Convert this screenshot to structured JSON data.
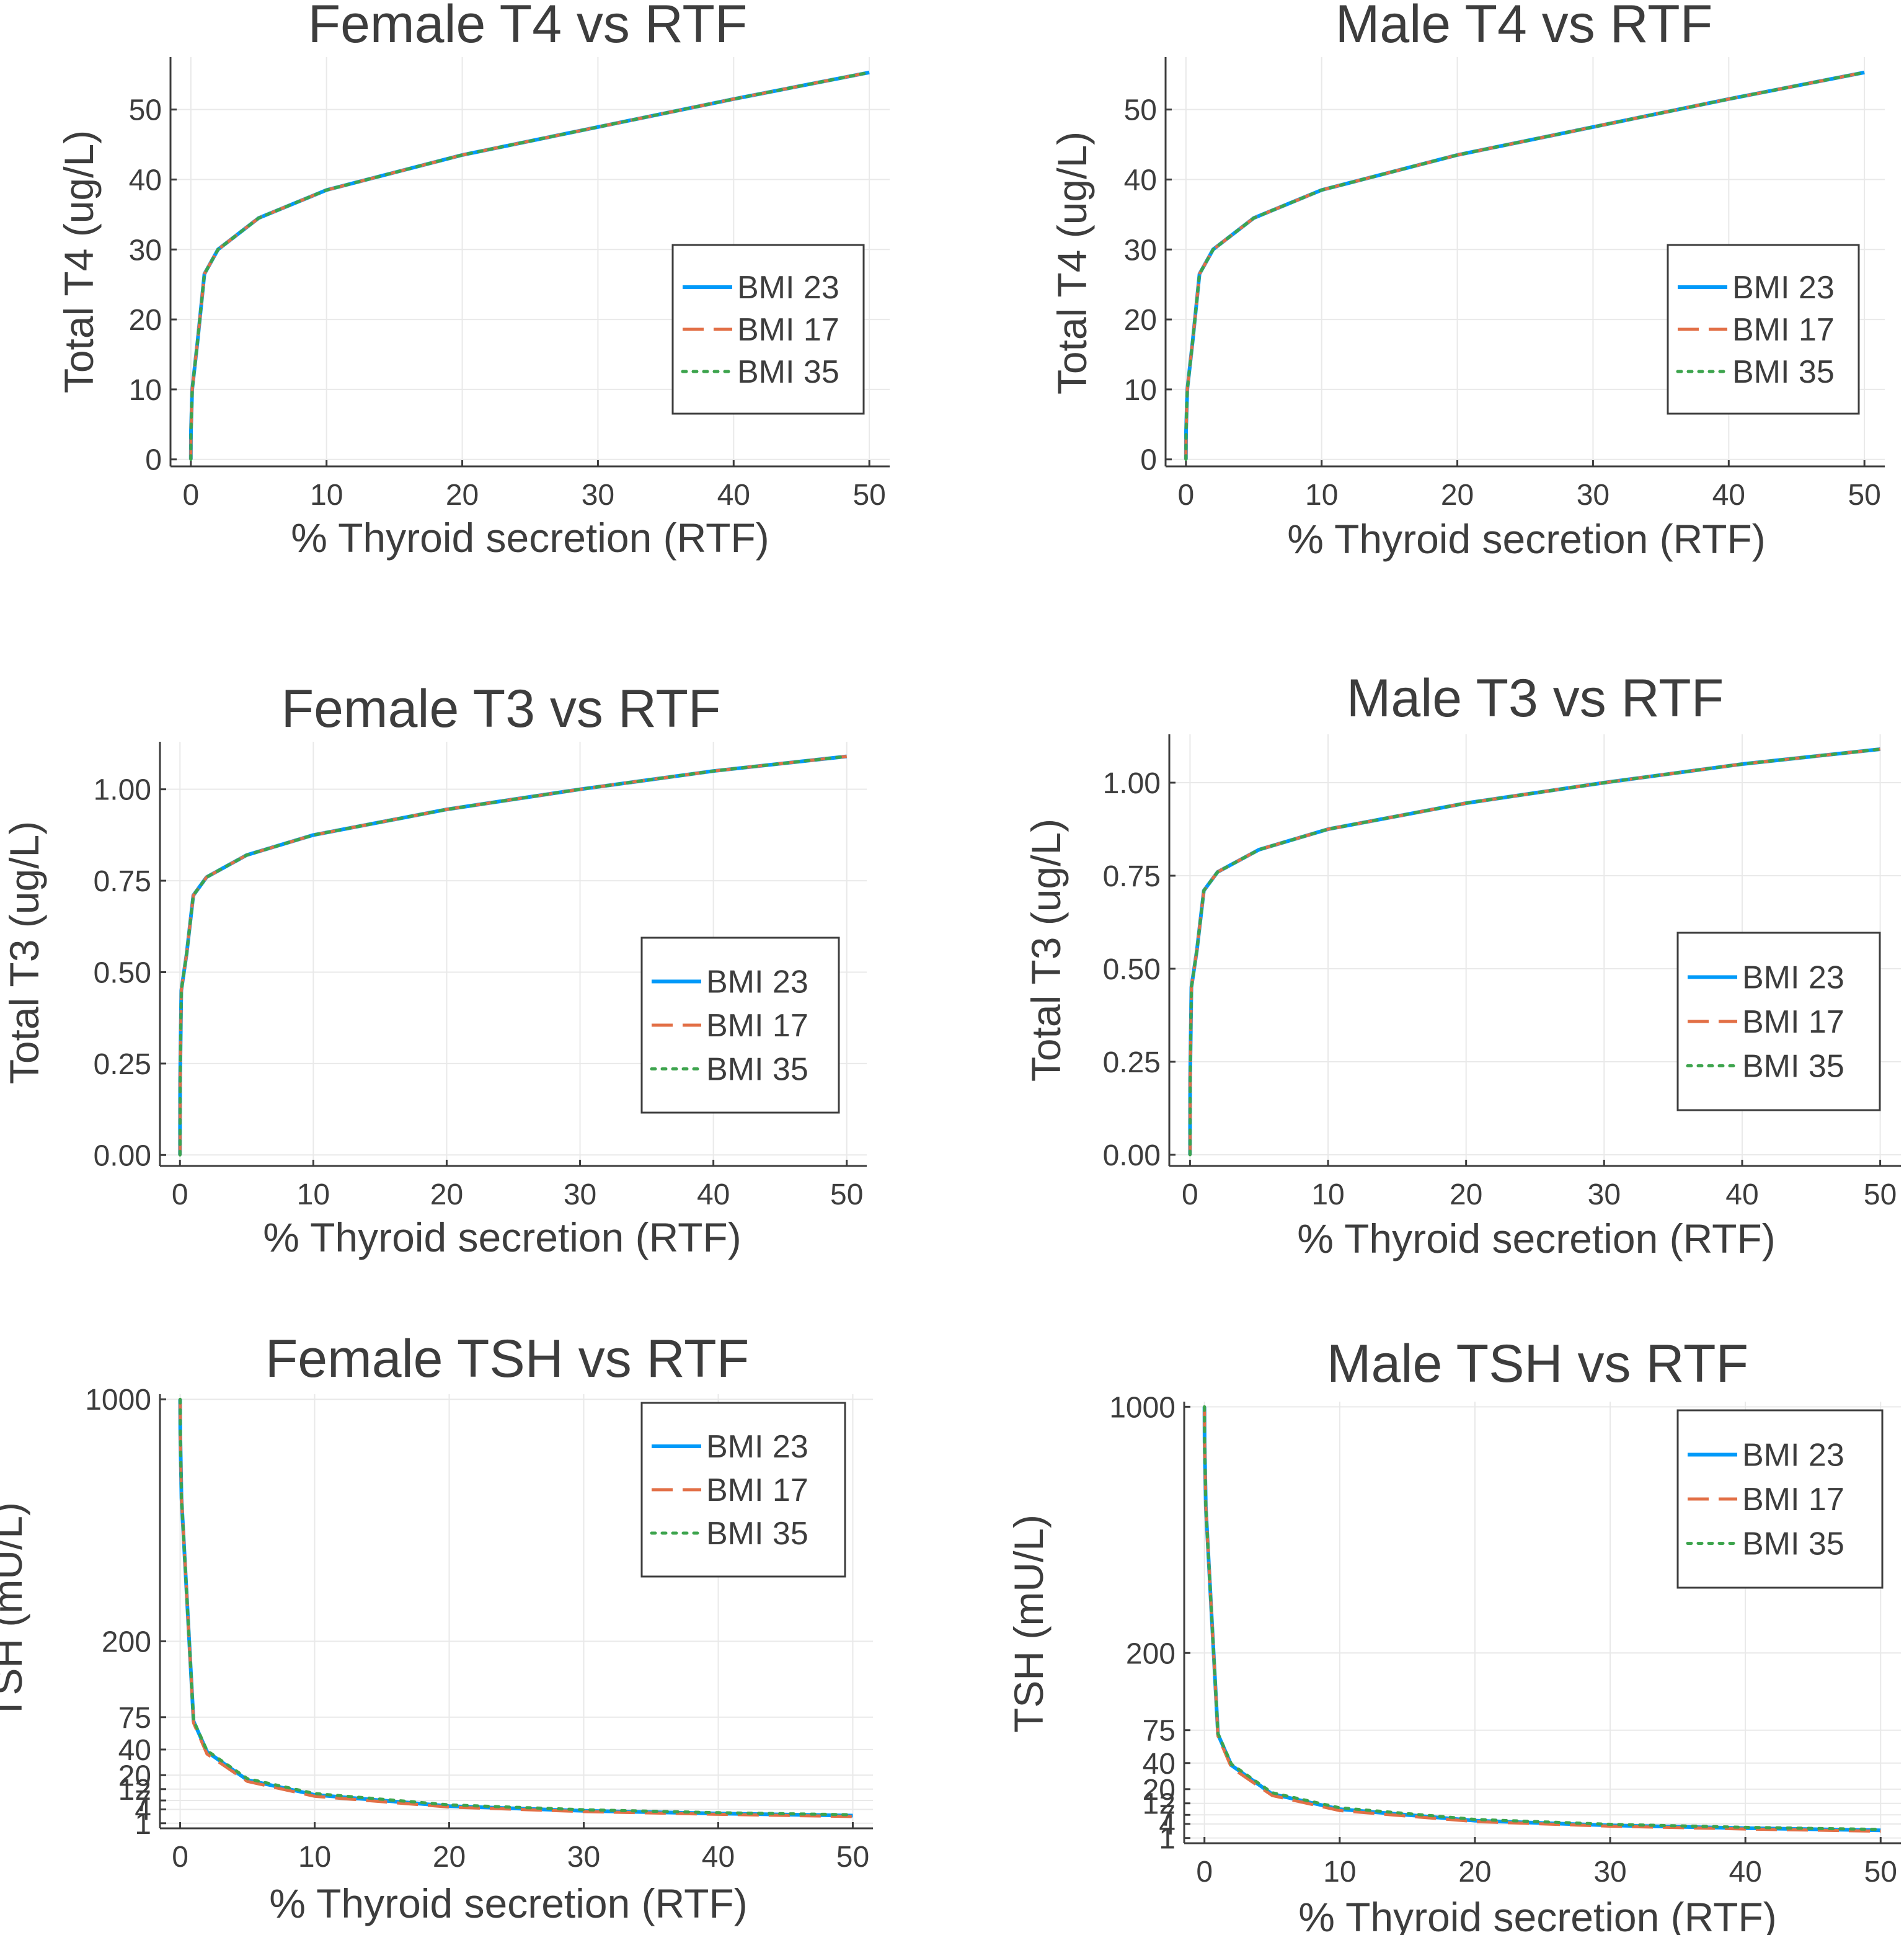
{
  "figure": "Thyroid hormone and TSH vs residual thyroid function (RTF) for three BMI levels",
  "series_styles": [
    {
      "name": "BMI 23",
      "color": "#009af9",
      "dash": "solid"
    },
    {
      "name": "BMI 17",
      "color": "#e26f46",
      "dash": "dashed"
    },
    {
      "name": "BMI 35",
      "color": "#3da44d",
      "dash": "dotted"
    }
  ],
  "chart_data": [
    {
      "id": "female-t4",
      "type": "line",
      "title": "Female T4 vs RTF",
      "xlabel": "% Thyroid secretion (RTF)",
      "ylabel": "Total T4 (ug/L)",
      "xlim": [
        -1.5,
        51.5
      ],
      "ylim": [
        -1,
        57.5
      ],
      "yscale": "linear",
      "xticks": [
        0,
        10,
        20,
        30,
        40,
        50
      ],
      "yticks": [
        0,
        10,
        20,
        30,
        40,
        50
      ],
      "ytick_labels": [
        "0",
        "10",
        "20",
        "30",
        "40",
        "50"
      ],
      "legend": "center-right",
      "x": [
        0,
        0.01,
        0.1,
        0.5,
        1,
        2,
        5,
        10,
        20,
        30,
        40,
        50
      ],
      "series": [
        {
          "name": "BMI 23",
          "values": [
            0,
            4,
            10,
            17,
            26.5,
            30,
            34.5,
            38.5,
            43.5,
            47.5,
            51.5,
            55.3
          ]
        },
        {
          "name": "BMI 17",
          "values": [
            0,
            4,
            10,
            17,
            26.5,
            30,
            34.5,
            38.5,
            43.5,
            47.5,
            51.5,
            55.3
          ]
        },
        {
          "name": "BMI 35",
          "values": [
            0,
            4,
            10,
            17,
            26.5,
            30,
            34.5,
            38.5,
            43.5,
            47.5,
            51.5,
            55.3
          ]
        }
      ]
    },
    {
      "id": "male-t4",
      "type": "line",
      "title": "Male T4 vs RTF",
      "xlabel": "% Thyroid secretion (RTF)",
      "ylabel": "Total T4 (ug/L)",
      "xlim": [
        -1.5,
        51.5
      ],
      "ylim": [
        -1,
        57.5
      ],
      "yscale": "linear",
      "xticks": [
        0,
        10,
        20,
        30,
        40,
        50
      ],
      "yticks": [
        0,
        10,
        20,
        30,
        40,
        50
      ],
      "ytick_labels": [
        "0",
        "10",
        "20",
        "30",
        "40",
        "50"
      ],
      "legend": "center-right",
      "x": [
        0,
        0.01,
        0.1,
        0.5,
        1,
        2,
        5,
        10,
        20,
        30,
        40,
        50
      ],
      "series": [
        {
          "name": "BMI 23",
          "values": [
            0,
            4,
            10,
            17,
            26.5,
            30,
            34.5,
            38.5,
            43.5,
            47.5,
            51.5,
            55.3
          ]
        },
        {
          "name": "BMI 17",
          "values": [
            0,
            4,
            10,
            17,
            26.5,
            30,
            34.5,
            38.5,
            43.5,
            47.5,
            51.5,
            55.3
          ]
        },
        {
          "name": "BMI 35",
          "values": [
            0,
            4,
            10,
            17,
            26.5,
            30,
            34.5,
            38.5,
            43.5,
            47.5,
            51.5,
            55.3
          ]
        }
      ]
    },
    {
      "id": "female-t3",
      "type": "line",
      "title": "Female T3 vs RTF",
      "xlabel": "% Thyroid secretion (RTF)",
      "ylabel": "Total T3 (ug/L)",
      "xlim": [
        -1.5,
        51.5
      ],
      "ylim": [
        -0.03,
        1.13
      ],
      "yscale": "linear",
      "xticks": [
        0,
        10,
        20,
        30,
        40,
        50
      ],
      "yticks": [
        0,
        0.25,
        0.5,
        0.75,
        1.0
      ],
      "ytick_labels": [
        "0.00",
        "0.25",
        "0.50",
        "0.75",
        "1.00"
      ],
      "legend": "center-right",
      "x": [
        0,
        0.01,
        0.1,
        0.5,
        1,
        2,
        5,
        10,
        20,
        30,
        40,
        50
      ],
      "series": [
        {
          "name": "BMI 23",
          "values": [
            0,
            0.2,
            0.45,
            0.55,
            0.71,
            0.76,
            0.82,
            0.875,
            0.945,
            1.0,
            1.05,
            1.09
          ]
        },
        {
          "name": "BMI 17",
          "values": [
            0,
            0.2,
            0.45,
            0.55,
            0.71,
            0.76,
            0.82,
            0.875,
            0.945,
            1.0,
            1.05,
            1.09
          ]
        },
        {
          "name": "BMI 35",
          "values": [
            0,
            0.2,
            0.45,
            0.55,
            0.71,
            0.76,
            0.82,
            0.875,
            0.945,
            1.0,
            1.05,
            1.09
          ]
        }
      ]
    },
    {
      "id": "male-t3",
      "type": "line",
      "title": "Male T3 vs RTF",
      "xlabel": "% Thyroid secretion (RTF)",
      "ylabel": "Total T3 (ug/L)",
      "xlim": [
        -1.5,
        51.5
      ],
      "ylim": [
        -0.03,
        1.13
      ],
      "yscale": "linear",
      "xticks": [
        0,
        10,
        20,
        30,
        40,
        50
      ],
      "yticks": [
        0,
        0.25,
        0.5,
        0.75,
        1.0
      ],
      "ytick_labels": [
        "0.00",
        "0.25",
        "0.50",
        "0.75",
        "1.00"
      ],
      "legend": "center-right",
      "x": [
        0,
        0.01,
        0.1,
        0.5,
        1,
        2,
        5,
        10,
        20,
        30,
        40,
        50
      ],
      "series": [
        {
          "name": "BMI 23",
          "values": [
            0,
            0.2,
            0.45,
            0.55,
            0.71,
            0.76,
            0.82,
            0.875,
            0.945,
            1.0,
            1.05,
            1.09
          ]
        },
        {
          "name": "BMI 17",
          "values": [
            0,
            0.2,
            0.45,
            0.55,
            0.71,
            0.76,
            0.82,
            0.875,
            0.945,
            1.0,
            1.05,
            1.09
          ]
        },
        {
          "name": "BMI 35",
          "values": [
            0,
            0.2,
            0.45,
            0.55,
            0.71,
            0.76,
            0.82,
            0.875,
            0.945,
            1.0,
            1.05,
            1.09
          ]
        }
      ]
    },
    {
      "id": "female-tsh",
      "type": "line",
      "title": "Female TSH vs RTF",
      "xlabel": "% Thyroid secretion (RTF)",
      "ylabel": "TSH (mU/L)",
      "xlim": [
        -1.5,
        51.5
      ],
      "ylim": [
        1,
        1000
      ],
      "yscale": "sqrt",
      "xticks": [
        0,
        10,
        20,
        30,
        40,
        50
      ],
      "yticks": [
        1,
        4,
        7,
        12,
        20,
        40,
        75,
        200,
        1000
      ],
      "ytick_labels": [
        "1",
        "4",
        "7",
        "12",
        "20",
        "40",
        "75",
        "200",
        "1000"
      ],
      "legend": "top-right",
      "x": [
        0,
        0.01,
        0.1,
        0.5,
        1,
        2,
        5,
        10,
        20,
        30,
        40,
        50
      ],
      "series": [
        {
          "name": "BMI 23",
          "values": [
            1000,
            850,
            600,
            300,
            70,
            38,
            17,
            9.3,
            5.0,
            3.6,
            2.9,
            2.4
          ]
        },
        {
          "name": "BMI 17",
          "values": [
            1000,
            850,
            600,
            300,
            68,
            36,
            16.2,
            8.7,
            4.7,
            3.4,
            2.7,
            2.2
          ]
        },
        {
          "name": "BMI 35",
          "values": [
            1000,
            850,
            600,
            300,
            71,
            39,
            17.8,
            9.9,
            5.4,
            3.9,
            3.1,
            2.6
          ]
        }
      ]
    },
    {
      "id": "male-tsh",
      "type": "line",
      "title": "Male TSH vs RTF",
      "xlabel": "% Thyroid secretion (RTF)",
      "ylabel": "TSH (mU/L)",
      "xlim": [
        -1.5,
        51.5
      ],
      "ylim": [
        1,
        1000
      ],
      "yscale": "sqrt",
      "xticks": [
        0,
        10,
        20,
        30,
        40,
        50
      ],
      "yticks": [
        1,
        4,
        7,
        12,
        20,
        40,
        75,
        200,
        1000
      ],
      "ytick_labels": [
        "1",
        "4",
        "7",
        "12",
        "20",
        "40",
        "75",
        "200",
        "1000"
      ],
      "legend": "top-right",
      "x": [
        0,
        0.01,
        0.1,
        0.5,
        1,
        2,
        5,
        10,
        20,
        30,
        40,
        50
      ],
      "series": [
        {
          "name": "BMI 23",
          "values": [
            1000,
            850,
            600,
            300,
            70,
            38,
            17,
            9.3,
            5.0,
            3.6,
            2.9,
            2.4
          ]
        },
        {
          "name": "BMI 17",
          "values": [
            1000,
            850,
            600,
            300,
            68,
            36,
            16.2,
            8.7,
            4.7,
            3.4,
            2.7,
            2.2
          ]
        },
        {
          "name": "BMI 35",
          "values": [
            1000,
            850,
            600,
            300,
            71,
            39,
            17.8,
            9.9,
            5.4,
            3.9,
            3.1,
            2.6
          ]
        }
      ]
    }
  ]
}
